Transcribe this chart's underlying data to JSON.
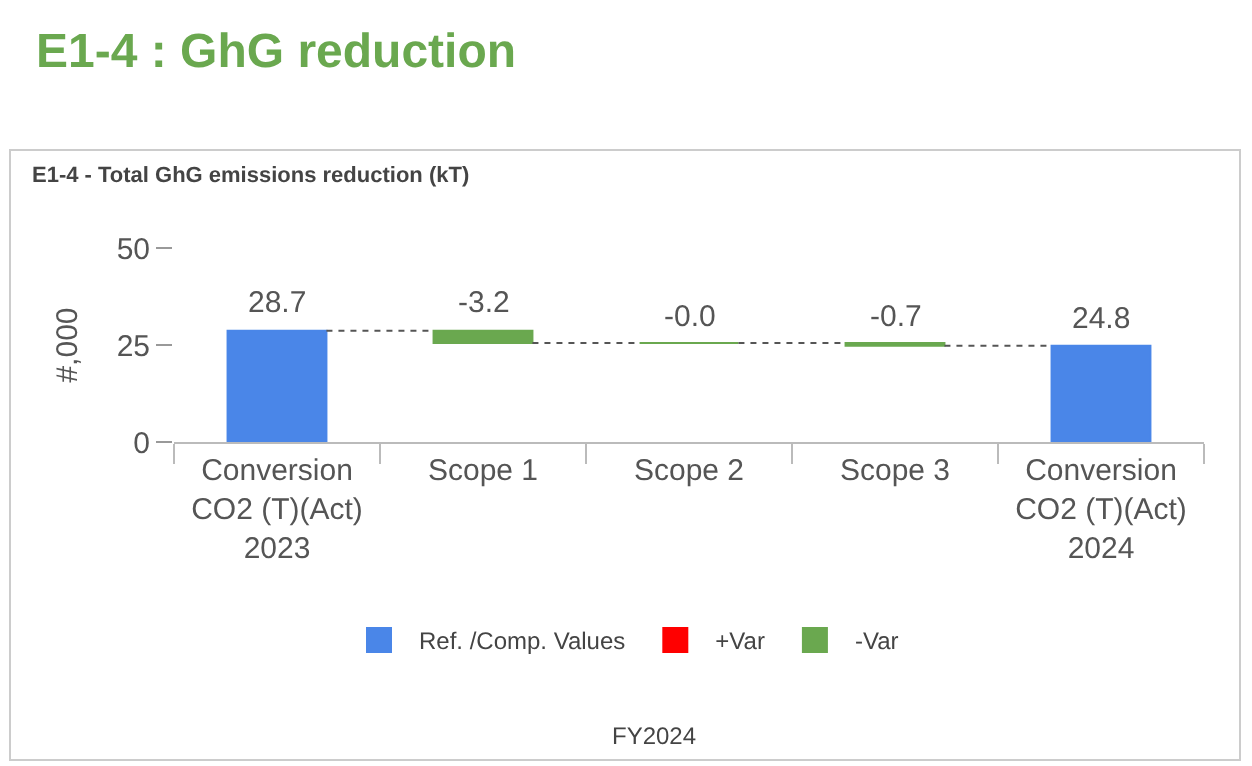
{
  "chart_data": {
    "type": "bar",
    "title": "E1-4 : GhG reduction",
    "subtitle": "E1-4 - Total GhG emissions reduction (kT)",
    "ylabel": "#,000",
    "categories": [
      "Conversion CO2 (T)(Act) 2023",
      "Scope 1",
      "Scope 2",
      "Scope 3",
      "Conversion CO2 (T)(Act) 2024"
    ],
    "series": [
      {
        "name": "Ref. /Comp. Values",
        "color": "#4a86e8",
        "values": [
          28.7,
          null,
          null,
          null,
          24.8
        ],
        "base": [
          0,
          null,
          null,
          null,
          0
        ],
        "value_labels": [
          "28.7",
          null,
          null,
          null,
          "24.8"
        ]
      },
      {
        "name": "+Var",
        "color": "#ff0000",
        "values": [
          null,
          null,
          null,
          null,
          null
        ],
        "base": [
          null,
          null,
          null,
          null,
          null
        ]
      },
      {
        "name": "-Var",
        "color": "#6aa84f",
        "values": [
          null,
          -3.2,
          -0.0,
          -0.7,
          null
        ],
        "base": [
          null,
          28.7,
          25.5,
          25.5,
          null
        ],
        "value_labels": [
          null,
          "-3.2",
          "-0.0",
          "-0.7",
          null
        ]
      }
    ],
    "ylim": [
      0,
      50
    ],
    "yticks": [
      0,
      25,
      50
    ],
    "legend": "bottom",
    "annotations": [
      "FY2024"
    ]
  }
}
